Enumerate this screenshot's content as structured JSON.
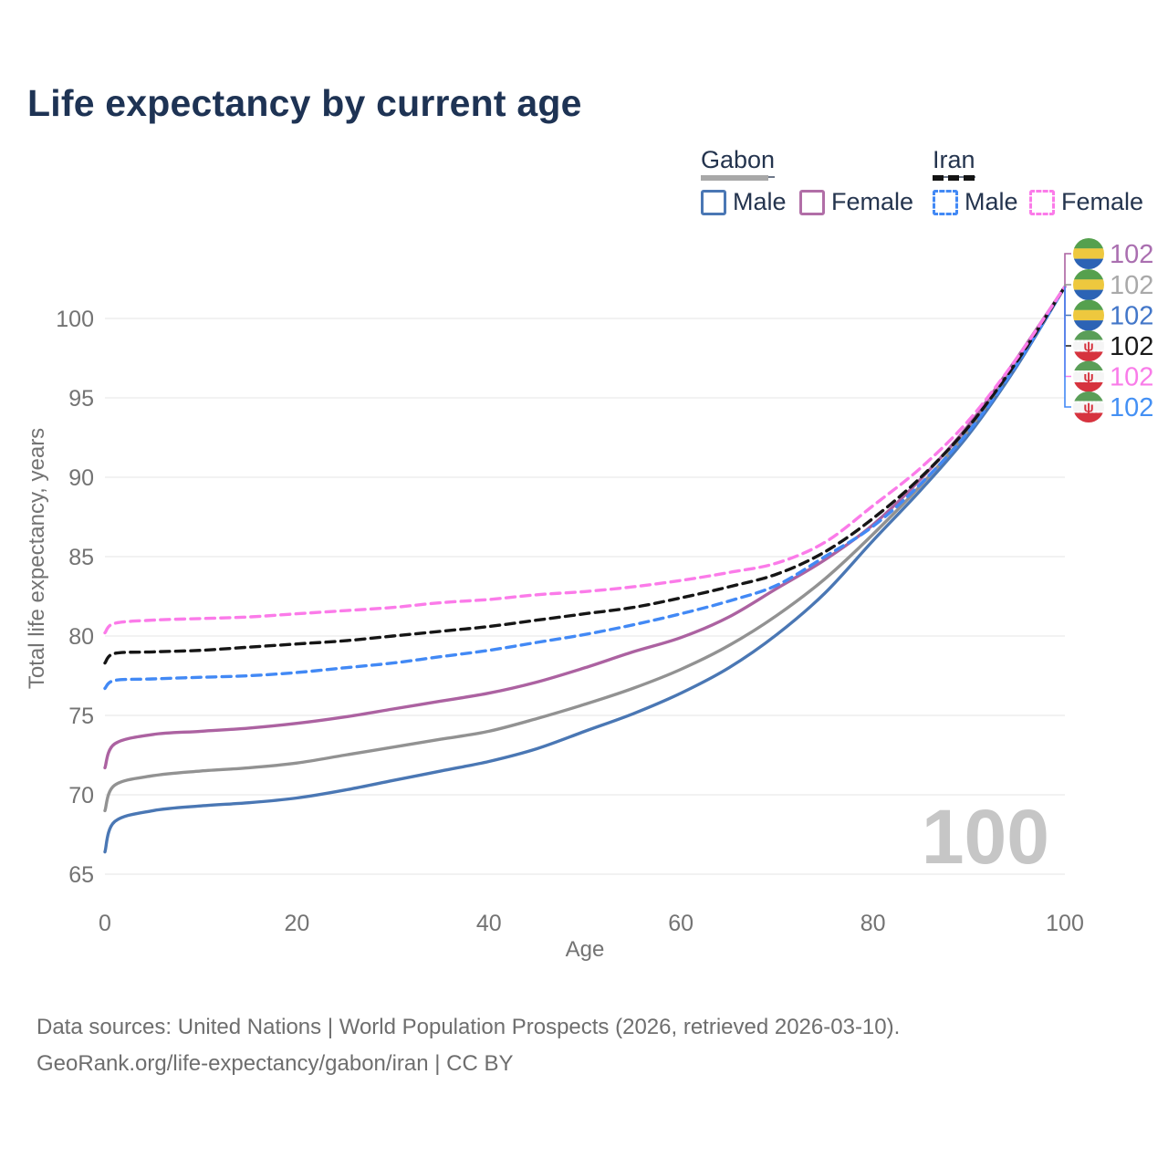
{
  "title": "Life expectancy by current age",
  "legend": {
    "groups": [
      {
        "name": "Gabon",
        "swatch_style": "solid",
        "swatch_color": "#a8a8a8",
        "items": [
          {
            "label": "Male",
            "color": "#4a77b4",
            "dash": false
          },
          {
            "label": "Female",
            "color": "#ac62a1",
            "dash": false
          }
        ]
      },
      {
        "name": "Iran",
        "swatch_style": "dashed",
        "swatch_color": "#141414",
        "items": [
          {
            "label": "Male",
            "color": "#4289f5",
            "dash": true
          },
          {
            "label": "Female",
            "color": "#fb7be9",
            "dash": true
          }
        ]
      }
    ]
  },
  "chart_data": {
    "type": "line",
    "title": "Life expectancy by current age",
    "xlabel": "Age",
    "ylabel": "Total life expectancy, years",
    "xlim": [
      0,
      100
    ],
    "ylim": [
      65,
      102
    ],
    "x_ticks": [
      0,
      20,
      40,
      60,
      80,
      100
    ],
    "y_ticks": [
      65,
      70,
      75,
      80,
      85,
      90,
      95,
      100
    ],
    "grid": "horizontal",
    "legend_position": "top-right",
    "watermark_age": "100",
    "ages": [
      0,
      1,
      5,
      10,
      15,
      20,
      25,
      30,
      35,
      40,
      45,
      50,
      55,
      60,
      65,
      70,
      75,
      80,
      85,
      90,
      95,
      100
    ],
    "series": [
      {
        "name": "Gabon Male",
        "country": "Gabon",
        "sex": "Male",
        "style": "solid",
        "color": "#4a77b4",
        "values": [
          66.4,
          68.3,
          69.0,
          69.3,
          69.5,
          69.8,
          70.3,
          70.9,
          71.5,
          72.1,
          72.9,
          74.0,
          75.1,
          76.4,
          78.0,
          80.1,
          82.7,
          86.0,
          89.2,
          92.7,
          97.0,
          102
        ]
      },
      {
        "name": "Gabon Total",
        "country": "Gabon",
        "sex": "Total",
        "style": "solid",
        "color": "#929292",
        "values": [
          69.0,
          70.6,
          71.2,
          71.5,
          71.7,
          72.0,
          72.5,
          73.0,
          73.5,
          74.0,
          74.8,
          75.7,
          76.7,
          77.9,
          79.4,
          81.3,
          83.6,
          86.4,
          89.5,
          93.0,
          97.3,
          102
        ]
      },
      {
        "name": "Gabon Female",
        "country": "Gabon",
        "sex": "Female",
        "style": "solid",
        "color": "#ac62a1",
        "values": [
          71.7,
          73.2,
          73.8,
          74.0,
          74.2,
          74.5,
          74.9,
          75.4,
          75.9,
          76.4,
          77.1,
          78.0,
          79.0,
          79.9,
          81.2,
          83.0,
          84.8,
          87.0,
          89.9,
          93.3,
          97.5,
          102
        ]
      },
      {
        "name": "Iran Male",
        "country": "Iran",
        "sex": "Male",
        "style": "dashed",
        "color": "#4289f5",
        "values": [
          76.7,
          77.2,
          77.3,
          77.4,
          77.5,
          77.7,
          78.0,
          78.3,
          78.7,
          79.1,
          79.6,
          80.1,
          80.7,
          81.4,
          82.2,
          83.2,
          85.0,
          86.9,
          89.6,
          92.9,
          97.1,
          102
        ]
      },
      {
        "name": "Iran Total",
        "country": "Iran",
        "sex": "Total",
        "style": "dashed",
        "color": "#161616",
        "values": [
          78.3,
          78.9,
          79.0,
          79.1,
          79.3,
          79.5,
          79.7,
          80.0,
          80.3,
          80.6,
          81.0,
          81.4,
          81.8,
          82.4,
          83.1,
          83.9,
          85.3,
          87.4,
          90.0,
          93.2,
          97.3,
          102
        ]
      },
      {
        "name": "Iran Female",
        "country": "Iran",
        "sex": "Female",
        "style": "dashed",
        "color": "#fb7be9",
        "values": [
          80.2,
          80.8,
          81.0,
          81.1,
          81.2,
          81.4,
          81.6,
          81.8,
          82.1,
          82.3,
          82.6,
          82.8,
          83.1,
          83.5,
          84.0,
          84.6,
          85.9,
          88.2,
          90.6,
          93.6,
          97.5,
          102
        ]
      }
    ],
    "end_labels": [
      {
        "series": "Gabon Female",
        "flag": "gabon",
        "value": "102",
        "color": "#aa6fb0"
      },
      {
        "series": "Gabon Total",
        "flag": "gabon",
        "value": "102",
        "color": "#a9a9a9"
      },
      {
        "series": "Gabon Male",
        "flag": "gabon",
        "value": "102",
        "color": "#4377c9"
      },
      {
        "series": "Iran Total",
        "flag": "iran",
        "value": "102",
        "color": "#1a1a1a"
      },
      {
        "series": "Iran Female",
        "flag": "iran",
        "value": "102",
        "color": "#f97ce9"
      },
      {
        "series": "Iran Male",
        "flag": "iran",
        "value": "102",
        "color": "#4490f4"
      }
    ],
    "flag_colors": {
      "gabon": {
        "green": "#55a04e",
        "yellow": "#eec83e",
        "blue": "#2c63b5"
      },
      "iran": {
        "green": "#5a9e58",
        "white": "#f5f5f5",
        "red": "#d6333e"
      }
    }
  },
  "footer": {
    "line1": "Data sources: United Nations | World Population Prospects (2026, retrieved 2026-03-10).",
    "line2": "GeoRank.org/life-expectancy/gabon/iran | CC BY"
  }
}
